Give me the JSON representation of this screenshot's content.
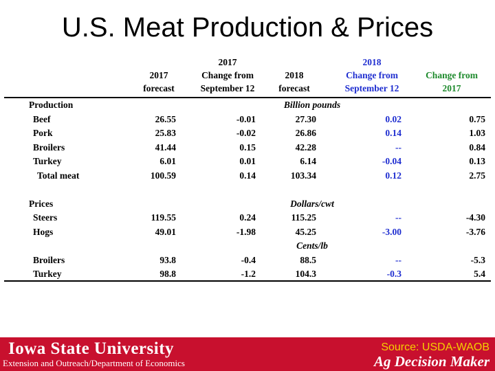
{
  "title": "U.S. Meat Production & Prices",
  "headers": [
    {
      "lines": [
        "2017",
        "forecast"
      ],
      "color": "#000000"
    },
    {
      "lines": [
        "2017",
        "Change from",
        "September 12"
      ],
      "color": "#000000"
    },
    {
      "lines": [
        "2018",
        "forecast"
      ],
      "color": "#000000"
    },
    {
      "lines": [
        "2018",
        "Change from",
        "September 12"
      ],
      "color": "#1f2ed0"
    },
    {
      "lines": [
        "Change from",
        "2017"
      ],
      "color": "#1d8a2c"
    }
  ],
  "rows": [
    {
      "label": "Production",
      "indent": 0,
      "unit": "Billion pounds",
      "values": []
    },
    {
      "label": "Beef",
      "indent": 1,
      "values": [
        "26.55",
        "-0.01",
        "27.30",
        "0.02",
        "0.75"
      ]
    },
    {
      "label": "Pork",
      "indent": 1,
      "values": [
        "25.83",
        "-0.02",
        "26.86",
        "0.14",
        "1.03"
      ]
    },
    {
      "label": "Broilers",
      "indent": 1,
      "values": [
        "41.44",
        "0.15",
        "42.28",
        "--",
        "0.84"
      ]
    },
    {
      "label": "Turkey",
      "indent": 1,
      "values": [
        "6.01",
        "0.01",
        "6.14",
        "-0.04",
        "0.13"
      ]
    },
    {
      "label": "Total meat",
      "indent": 2,
      "values": [
        "100.59",
        "0.14",
        "103.34",
        "0.12",
        "2.75"
      ]
    },
    {
      "label": "",
      "indent": 0,
      "values": []
    },
    {
      "label": "Prices",
      "indent": 0,
      "unit": "Dollars/cwt",
      "values": []
    },
    {
      "label": "Steers",
      "indent": 1,
      "values": [
        "119.55",
        "0.24",
        "115.25",
        "--",
        "-4.30"
      ]
    },
    {
      "label": "Hogs",
      "indent": 1,
      "values": [
        "49.01",
        "-1.98",
        "45.25",
        "-3.00",
        "-3.76"
      ]
    },
    {
      "label": "",
      "indent": 0,
      "unit": "Cents/lb",
      "values": []
    },
    {
      "label": "Broilers",
      "indent": 1,
      "values": [
        "93.8",
        "-0.4",
        "88.5",
        "--",
        "-5.3"
      ]
    },
    {
      "label": "Turkey",
      "indent": 1,
      "values": [
        "98.8",
        "-1.2",
        "104.3",
        "-0.3",
        "5.4"
      ]
    }
  ],
  "footer": {
    "university": "Iowa State University",
    "extension": "Extension and Outreach/Department of Economics",
    "source": "Source: USDA-WAOB",
    "brand": "Ag Decision Maker"
  },
  "colors": {
    "footer_bg": "#c8102e",
    "blue": "#1f2ed0",
    "green": "#1d8a2c",
    "source": "#f5d000"
  }
}
